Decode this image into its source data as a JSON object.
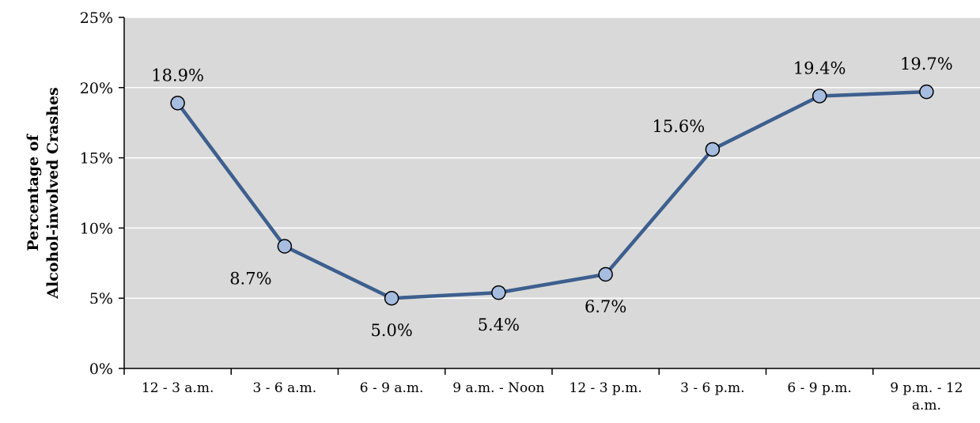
{
  "chart_data": {
    "type": "line",
    "title": "",
    "xlabel": "",
    "ylabel": [
      "Percentage of",
      "Alcohol-involved Crashes"
    ],
    "categories": [
      "12 - 3 a.m.",
      "3 - 6 a.m.",
      "6 - 9 a.m.",
      "9 a.m. - Noon",
      "12 - 3 p.m.",
      "3 - 6 p.m.",
      "6 - 9 p.m.",
      "9 p.m. - 12 a.m."
    ],
    "category_lines": [
      [
        "12 - 3 a.m."
      ],
      [
        "3 - 6 a.m."
      ],
      [
        "6 - 9 a.m."
      ],
      [
        "9 a.m. - Noon"
      ],
      [
        "12 - 3 p.m."
      ],
      [
        "3 - 6 p.m."
      ],
      [
        "6 - 9 p.m."
      ],
      [
        "9 p.m. - 12",
        "a.m."
      ]
    ],
    "values": [
      18.9,
      8.7,
      5.0,
      5.4,
      6.7,
      15.6,
      19.4,
      19.7
    ],
    "data_labels": [
      "18.9%",
      "8.7%",
      "5.0%",
      "5.4%",
      "6.7%",
      "15.6%",
      "19.4%",
      "19.7%"
    ],
    "ylim": [
      0,
      25
    ],
    "yticks": [
      0,
      5,
      10,
      15,
      20,
      25
    ],
    "ytick_labels": [
      "0%",
      "5%",
      "10%",
      "15%",
      "20%",
      "25%"
    ],
    "grid": true,
    "legend": "none",
    "colors": {
      "plot_background": "#d9d9d9",
      "gridline": "#ffffff",
      "line": "#3d5f8e",
      "marker_fill": "#a6bde0",
      "marker_stroke": "#000000"
    }
  }
}
